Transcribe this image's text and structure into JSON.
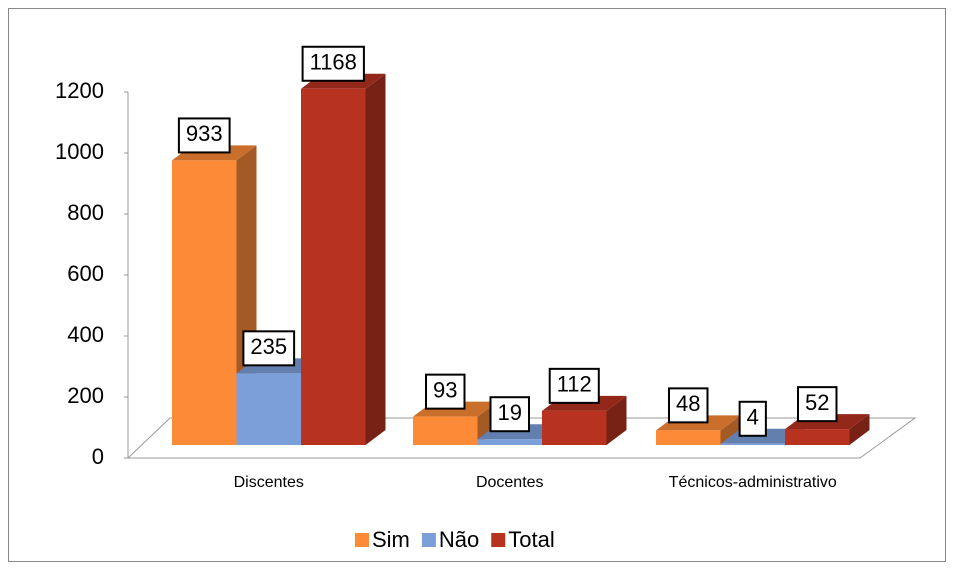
{
  "chart_data": {
    "type": "bar3d",
    "categories": [
      "Discentes",
      "Docentes",
      "Técnicos-administrativo"
    ],
    "series": [
      {
        "name": "Sim",
        "color": "#fd8a37",
        "values": [
          933,
          93,
          48
        ]
      },
      {
        "name": "Não",
        "color": "#7b9fd9",
        "values": [
          235,
          19,
          4
        ]
      },
      {
        "name": "Total",
        "color": "#b83220",
        "values": [
          1168,
          112,
          52
        ]
      }
    ],
    "ylim": [
      0,
      1200
    ],
    "yticks": [
      0,
      200,
      400,
      600,
      800,
      1000,
      1200
    ],
    "legend": "bottom"
  }
}
